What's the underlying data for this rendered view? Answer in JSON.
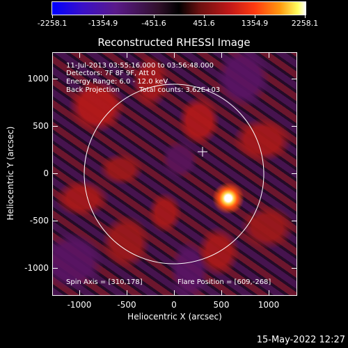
{
  "colorbar": {
    "labels": [
      "-2258.1",
      "-1354.9",
      "-451.6",
      "451.6",
      "1354.9",
      "2258.1"
    ]
  },
  "title": "Reconstructed RHESSI Image",
  "info": {
    "time_range": "11-Jul-2013 03:55:16.000 to 03:56:48.000",
    "detectors": "Detectors: 7F 8F 9F, Att 0",
    "energy_range": "Energy Range: 6.0 - 12.0 keV",
    "method": "Back Projection",
    "total_counts": "Total counts: 3.62E+03",
    "spin_axis": "Spin Axis = [310,178]",
    "flare_position": "Flare Position = [609,-268]"
  },
  "axes": {
    "x_title": "Heliocentric X (arcsec)",
    "y_title": "Heliocentric Y (arcsec)",
    "x_ticks": [
      "-1000",
      "-500",
      "0",
      "500",
      "1000"
    ],
    "y_ticks": [
      "1000",
      "500",
      "0",
      "-500",
      "-1000"
    ]
  },
  "timestamp": "15-May-2022 12:27"
}
